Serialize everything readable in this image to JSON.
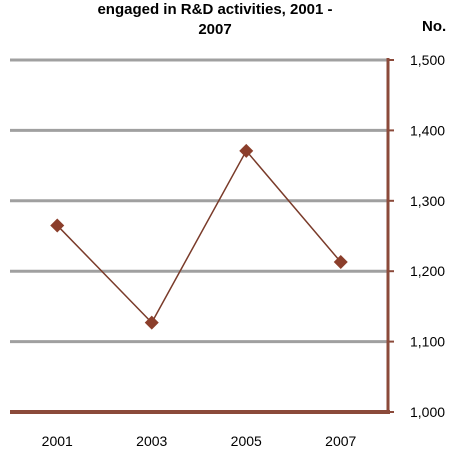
{
  "chart_data": {
    "type": "line",
    "title": "engaged in R&D activities, 2001 -\n2007",
    "unit_label": "No.",
    "categories": [
      "2001",
      "2003",
      "2005",
      "2007"
    ],
    "series": [
      {
        "values": [
          1265,
          1127,
          1371,
          1213
        ]
      }
    ],
    "ylim": [
      1000,
      1500
    ],
    "yticks": [
      1000,
      1100,
      1200,
      1300,
      1400,
      1500
    ],
    "ytick_labels": [
      "1,000",
      "1,100",
      "1,200",
      "1,300",
      "1,400",
      "1,500"
    ],
    "grid": true,
    "y_axis_side": "right",
    "colors": {
      "line": "#7a3b2a",
      "marker": "#8b3e2b",
      "axis": "#8b4a3a",
      "grid": "#a0a0a0"
    }
  }
}
